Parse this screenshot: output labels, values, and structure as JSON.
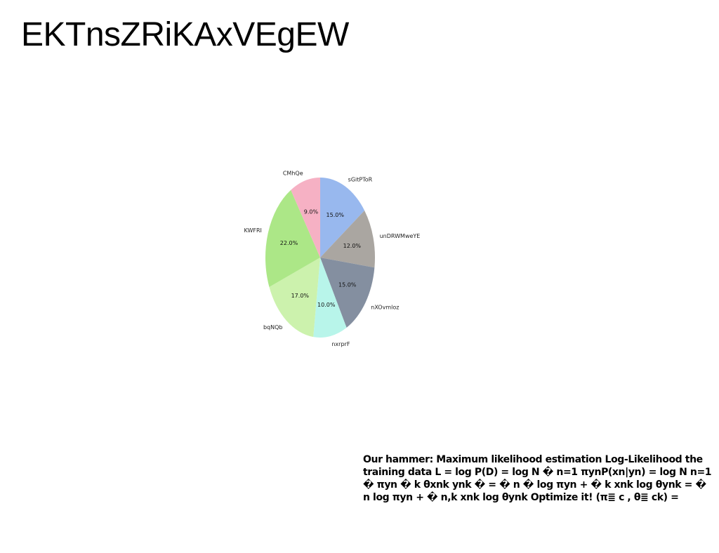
{
  "title": "EKTnsZRiKAxVEgEW",
  "caption": "Our hammer: Maximum likelihood estimation Log-Likelihood the training data L = log P(D) = log N � n=1 πynP(xn|yn) = log N n=1 � πyn � k θxnk ynk � = � n � log πyn + � k xnk log θynk = � n log πyn + � n,k xnk log θynk Optimize it! (π≣ c , θ≣ ck) =",
  "chart_data": {
    "type": "pie",
    "title": "",
    "start_angle_deg": 90,
    "direction": "clockwise",
    "slices": [
      {
        "label": "sGitPToR",
        "value": 15.0,
        "pct_label": "15.0%",
        "color": "#98b8ee"
      },
      {
        "label": "unDRWMweYE",
        "value": 12.0,
        "pct_label": "12.0%",
        "color": "#aaa6a1"
      },
      {
        "label": "nXOvmloz",
        "value": 15.0,
        "pct_label": "15.0%",
        "color": "#848fa0"
      },
      {
        "label": "nxrprF",
        "value": 10.0,
        "pct_label": "10.0%",
        "color": "#b8f5ea"
      },
      {
        "label": "bqNQb",
        "value": 17.0,
        "pct_label": "17.0%",
        "color": "#ccf2ad"
      },
      {
        "label": "KWFRI",
        "value": 22.0,
        "pct_label": "22.0%",
        "color": "#ace787"
      },
      {
        "label": "CMhQe",
        "value": 9.0,
        "pct_label": "9.0%",
        "color": "#f6b1c4"
      }
    ]
  }
}
